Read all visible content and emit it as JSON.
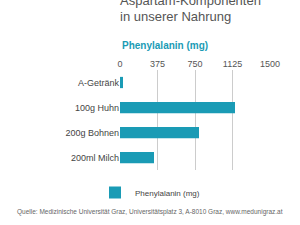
{
  "chart_data": {
    "type": "bar",
    "orientation": "horizontal",
    "title": "Aspartam-Komponenten in unserer Nahrung",
    "subtitle": "Phenylalanin (mg)",
    "source": "Quelle: Medizinische Universität Graz, Universitätsplatz 3, A-8010 Graz, www.medunigraz.at",
    "categories": [
      "A-Getränk",
      "100g Huhn",
      "200g Bohnen",
      "200ml Milch"
    ],
    "series": [
      {
        "name": "Phenylalanin (mg)",
        "color": "#1a9bb5",
        "values": [
          30,
          1150,
          790,
          340
        ]
      }
    ],
    "xlim": [
      0,
      1500
    ],
    "xticks": [
      0,
      375,
      750,
      1125,
      1500
    ],
    "grid": true,
    "legend": "bottom"
  }
}
